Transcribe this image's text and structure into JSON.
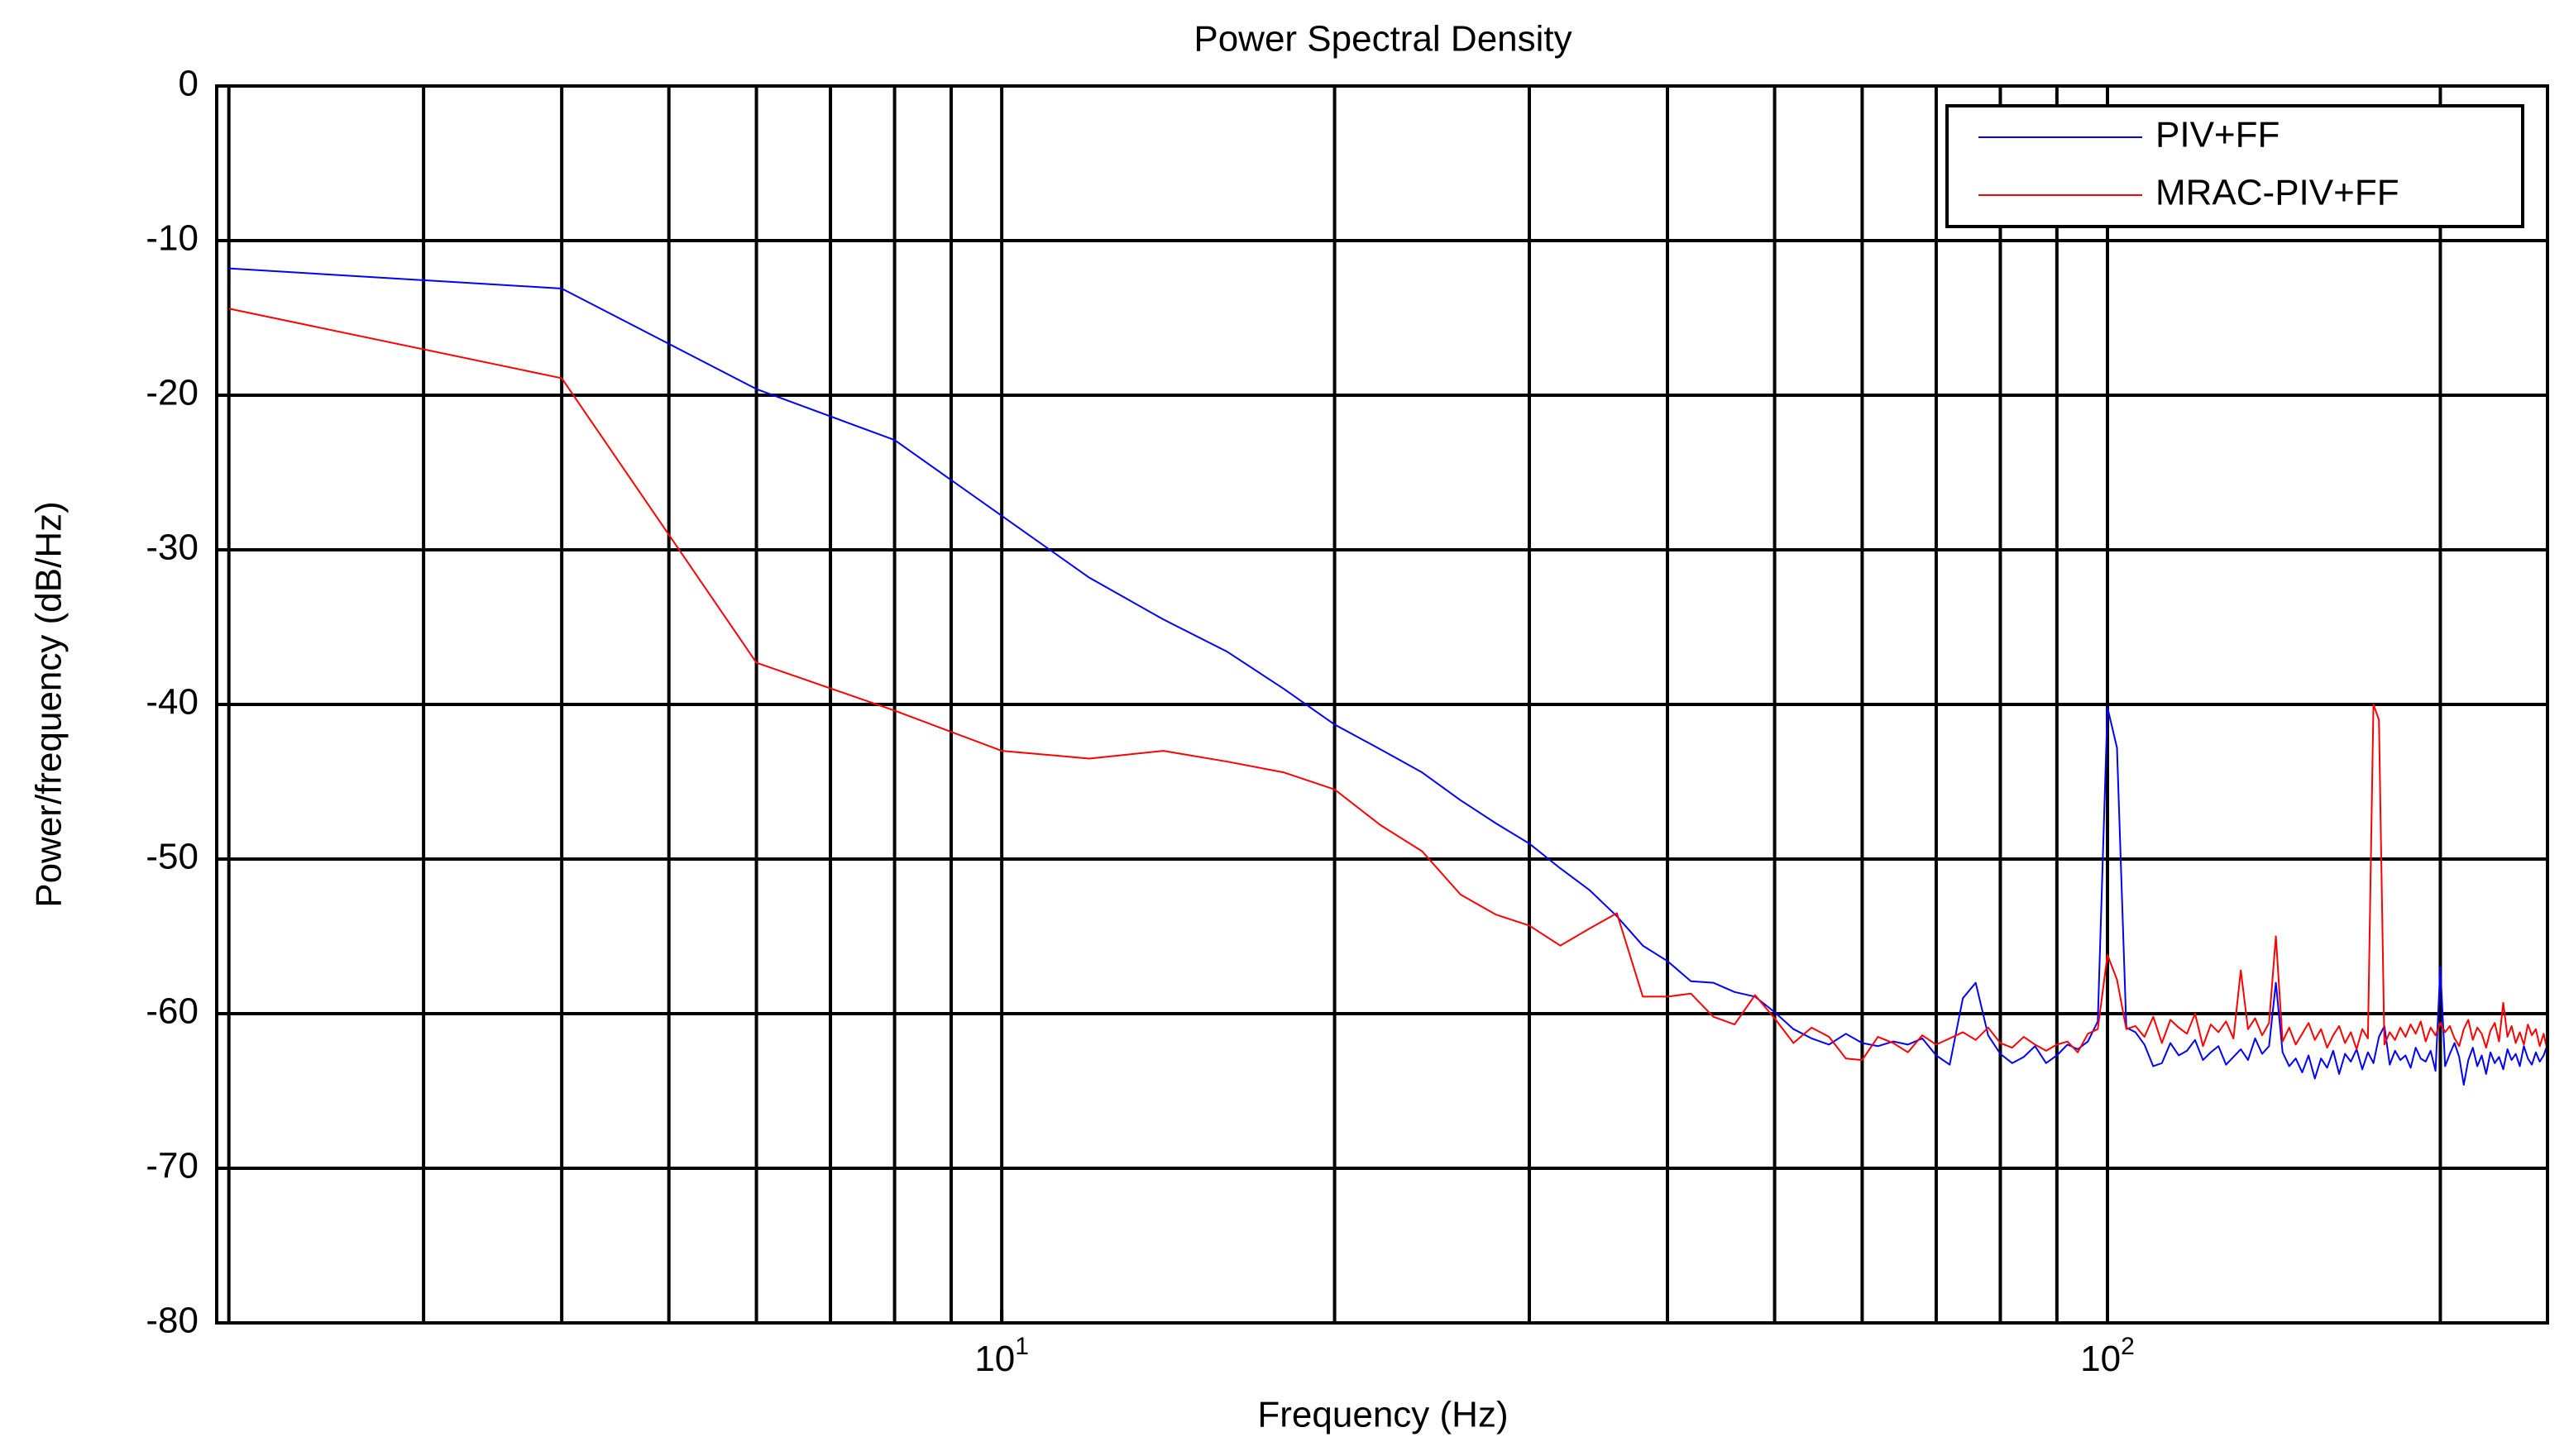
{
  "chart_data": {
    "type": "line",
    "title": "Power Spectral Density",
    "xlabel": "Frequency (Hz)",
    "ylabel": "Power/frequency (dB/Hz)",
    "xscale": "log",
    "xlim": [
      1.95,
      250
    ],
    "ylim": [
      -80,
      0
    ],
    "xticks": [
      {
        "value": 10,
        "label": "10",
        "exponent": "1"
      },
      {
        "value": 100,
        "label": "10",
        "exponent": "2"
      }
    ],
    "xgrid": [
      2,
      3,
      4,
      5,
      6,
      7,
      8,
      9,
      10,
      20,
      30,
      40,
      50,
      60,
      70,
      80,
      90,
      100,
      200
    ],
    "yticks": [
      0,
      -10,
      -20,
      -30,
      -40,
      -50,
      -60,
      -70,
      -80
    ],
    "grid": true,
    "legend": "upper right",
    "x": [
      2,
      4,
      6,
      8,
      10,
      12,
      14,
      16,
      18,
      20,
      22,
      24,
      26,
      28,
      30,
      32,
      34,
      36,
      38,
      40,
      42,
      44,
      46,
      48,
      50,
      52,
      54,
      56,
      58,
      60,
      62,
      64,
      66,
      68,
      70,
      72,
      74,
      76,
      78,
      80,
      82,
      84,
      86,
      88,
      90,
      92,
      94,
      96,
      98,
      100,
      102,
      104,
      106,
      108,
      110,
      112,
      114,
      116,
      118,
      120,
      122,
      124,
      126,
      128,
      130,
      132,
      134,
      136,
      138,
      140,
      142,
      144,
      146,
      148,
      150,
      152,
      154,
      156,
      158,
      160,
      162,
      164,
      166,
      168,
      170,
      172,
      174,
      176,
      178,
      180,
      182,
      184,
      186,
      188,
      190,
      192,
      194,
      196,
      198,
      200,
      202,
      204,
      206,
      208,
      210,
      212,
      214,
      216,
      218,
      220,
      222,
      224,
      226,
      228,
      230,
      232,
      234,
      236,
      238,
      240,
      242,
      244,
      246,
      248,
      250
    ],
    "series": [
      {
        "name": "PIV+FF",
        "color": "#0000ff",
        "values": [
          -11.8,
          -13.1,
          -19.6,
          -22.9,
          -27.8,
          -31.8,
          -34.5,
          -36.6,
          -39.0,
          -41.3,
          -42.9,
          -44.4,
          -46.2,
          -47.7,
          -49.0,
          -50.6,
          -52.0,
          -53.7,
          -55.6,
          -56.6,
          -57.9,
          -58.0,
          -58.6,
          -58.9,
          -59.9,
          -61.0,
          -61.6,
          -62.0,
          -61.3,
          -61.9,
          -62.1,
          -61.8,
          -62.0,
          -61.6,
          -62.7,
          -63.3,
          -59.0,
          -58.0,
          -61.4,
          -62.6,
          -63.2,
          -62.8,
          -62.1,
          -63.2,
          -62.7,
          -62.0,
          -62.3,
          -61.8,
          -60.5,
          -40.2,
          -42.8,
          -60.9,
          -61.2,
          -62.0,
          -63.4,
          -63.2,
          -61.9,
          -62.7,
          -62.4,
          -61.7,
          -63.0,
          -62.5,
          -62.1,
          -63.3,
          -62.8,
          -62.3,
          -63.0,
          -61.6,
          -62.6,
          -62.1,
          -58.0,
          -62.5,
          -63.4,
          -62.9,
          -63.8,
          -62.7,
          -64.2,
          -62.9,
          -63.5,
          -62.4,
          -63.9,
          -62.6,
          -63.1,
          -62.3,
          -63.6,
          -62.5,
          -63.2,
          -61.5,
          -60.8,
          -63.3,
          -62.4,
          -63.0,
          -62.7,
          -63.5,
          -62.2,
          -62.9,
          -63.1,
          -62.4,
          -63.7,
          -57.0,
          -63.4,
          -62.6,
          -61.9,
          -62.8,
          -64.6,
          -63.0,
          -62.2,
          -63.4,
          -62.7,
          -63.9,
          -62.5,
          -63.2,
          -62.8,
          -63.6,
          -62.3,
          -63.0,
          -62.6,
          -63.4,
          -62.1,
          -62.9,
          -63.3,
          -62.5,
          -63.1,
          -62.7,
          -62.0
        ]
      },
      {
        "name": "MRAC-PIV+FF",
        "color": "#ff0000",
        "values": [
          -14.4,
          -18.9,
          -37.3,
          -40.4,
          -43.0,
          -43.5,
          -43.0,
          -43.7,
          -44.4,
          -45.5,
          -47.8,
          -49.5,
          -52.3,
          -53.6,
          -54.3,
          -55.6,
          -54.5,
          -53.5,
          -58.9,
          -58.9,
          -58.7,
          -60.2,
          -60.7,
          -58.8,
          -60.3,
          -61.9,
          -60.9,
          -61.5,
          -62.9,
          -63.0,
          -61.5,
          -61.9,
          -62.5,
          -61.4,
          -62.0,
          -61.6,
          -61.2,
          -61.7,
          -60.9,
          -61.9,
          -62.2,
          -61.5,
          -62.0,
          -62.4,
          -62.0,
          -61.8,
          -62.5,
          -61.3,
          -61.0,
          -56.2,
          -57.8,
          -61.0,
          -60.8,
          -61.5,
          -60.2,
          -61.9,
          -60.4,
          -60.9,
          -61.3,
          -60.0,
          -62.1,
          -60.7,
          -61.2,
          -60.5,
          -61.6,
          -57.2,
          -61.0,
          -60.3,
          -61.4,
          -60.6,
          -55.0,
          -61.8,
          -60.9,
          -62.0,
          -61.3,
          -60.6,
          -61.7,
          -61.0,
          -62.2,
          -61.4,
          -60.8,
          -61.9,
          -61.2,
          -62.3,
          -61.0,
          -61.6,
          -40.0,
          -41.0,
          -62.0,
          -61.2,
          -61.7,
          -60.9,
          -61.5,
          -60.7,
          -61.3,
          -60.5,
          -61.8,
          -60.9,
          -61.4,
          -60.6,
          -61.2,
          -60.8,
          -61.6,
          -62.1,
          -61.0,
          -60.4,
          -61.7,
          -60.9,
          -61.3,
          -62.2,
          -61.1,
          -60.6,
          -61.8,
          -59.3,
          -61.5,
          -60.8,
          -61.9,
          -61.2,
          -62.0,
          -60.7,
          -61.4,
          -61.0,
          -62.1,
          -61.3,
          -62.4
        ]
      }
    ]
  }
}
